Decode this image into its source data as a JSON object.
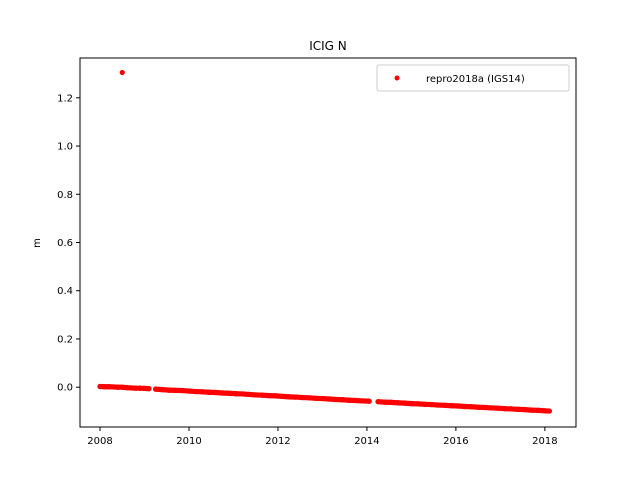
{
  "chart_data": {
    "type": "scatter",
    "title": "ICIG N",
    "xlabel": "",
    "ylabel": "m",
    "xlim": [
      2007.55,
      2018.7
    ],
    "ylim": [
      -0.165,
      1.365
    ],
    "xticks": [
      2008,
      2010,
      2012,
      2014,
      2016,
      2018
    ],
    "xtick_labels": [
      "2008",
      "2010",
      "2012",
      "2014",
      "2016",
      "2018"
    ],
    "yticks": [
      0.0,
      0.2,
      0.4,
      0.6,
      0.8,
      1.0,
      1.2
    ],
    "ytick_labels": [
      "0.0",
      "0.2",
      "0.4",
      "0.6",
      "0.8",
      "1.0",
      "1.2"
    ],
    "grid": false,
    "legend_position": "top-right",
    "series": [
      {
        "name": "repro2018a (IGS14)",
        "color": "#ff0000",
        "marker": "circle",
        "outliers": [
          {
            "x": 2008.5,
            "y": 1.305
          }
        ],
        "points": [
          {
            "x": 2008.0,
            "y": 0.003
          },
          {
            "x": 2008.1,
            "y": 0.002
          },
          {
            "x": 2008.2,
            "y": 0.002
          },
          {
            "x": 2008.3,
            "y": 0.001
          },
          {
            "x": 2008.4,
            "y": 0.0
          },
          {
            "x": 2008.5,
            "y": 0.0
          },
          {
            "x": 2008.6,
            "y": -0.002
          },
          {
            "x": 2008.7,
            "y": -0.003
          },
          {
            "x": 2008.8,
            "y": -0.004
          },
          {
            "x": 2008.9,
            "y": -0.004
          },
          {
            "x": 2009.0,
            "y": -0.005
          },
          {
            "x": 2009.1,
            "y": -0.006
          },
          {
            "x": 2009.25,
            "y": -0.008
          },
          {
            "x": 2009.4,
            "y": -0.01
          },
          {
            "x": 2009.55,
            "y": -0.012
          },
          {
            "x": 2009.7,
            "y": -0.013
          },
          {
            "x": 2009.85,
            "y": -0.014
          },
          {
            "x": 2010.0,
            "y": -0.016
          },
          {
            "x": 2010.15,
            "y": -0.018
          },
          {
            "x": 2010.3,
            "y": -0.019
          },
          {
            "x": 2010.45,
            "y": -0.021
          },
          {
            "x": 2010.6,
            "y": -0.022
          },
          {
            "x": 2010.75,
            "y": -0.024
          },
          {
            "x": 2010.9,
            "y": -0.025
          },
          {
            "x": 2011.05,
            "y": -0.027
          },
          {
            "x": 2011.2,
            "y": -0.028
          },
          {
            "x": 2011.35,
            "y": -0.03
          },
          {
            "x": 2011.5,
            "y": -0.032
          },
          {
            "x": 2011.65,
            "y": -0.033
          },
          {
            "x": 2011.8,
            "y": -0.035
          },
          {
            "x": 2011.95,
            "y": -0.036
          },
          {
            "x": 2012.1,
            "y": -0.038
          },
          {
            "x": 2012.25,
            "y": -0.04
          },
          {
            "x": 2012.4,
            "y": -0.041
          },
          {
            "x": 2012.55,
            "y": -0.043
          },
          {
            "x": 2012.7,
            "y": -0.044
          },
          {
            "x": 2012.85,
            "y": -0.046
          },
          {
            "x": 2013.0,
            "y": -0.047
          },
          {
            "x": 2013.15,
            "y": -0.049
          },
          {
            "x": 2013.3,
            "y": -0.051
          },
          {
            "x": 2013.45,
            "y": -0.052
          },
          {
            "x": 2013.6,
            "y": -0.054
          },
          {
            "x": 2013.75,
            "y": -0.055
          },
          {
            "x": 2013.9,
            "y": -0.057
          },
          {
            "x": 2014.05,
            "y": -0.058
          },
          {
            "x": 2014.25,
            "y": -0.06
          },
          {
            "x": 2014.4,
            "y": -0.062
          },
          {
            "x": 2014.55,
            "y": -0.063
          },
          {
            "x": 2014.7,
            "y": -0.065
          },
          {
            "x": 2014.85,
            "y": -0.066
          },
          {
            "x": 2015.0,
            "y": -0.068
          },
          {
            "x": 2015.15,
            "y": -0.069
          },
          {
            "x": 2015.3,
            "y": -0.071
          },
          {
            "x": 2015.45,
            "y": -0.072
          },
          {
            "x": 2015.6,
            "y": -0.074
          },
          {
            "x": 2015.75,
            "y": -0.075
          },
          {
            "x": 2015.9,
            "y": -0.077
          },
          {
            "x": 2016.05,
            "y": -0.078
          },
          {
            "x": 2016.2,
            "y": -0.08
          },
          {
            "x": 2016.35,
            "y": -0.081
          },
          {
            "x": 2016.5,
            "y": -0.083
          },
          {
            "x": 2016.65,
            "y": -0.084
          },
          {
            "x": 2016.8,
            "y": -0.086
          },
          {
            "x": 2016.95,
            "y": -0.087
          },
          {
            "x": 2017.1,
            "y": -0.089
          },
          {
            "x": 2017.25,
            "y": -0.09
          },
          {
            "x": 2017.4,
            "y": -0.092
          },
          {
            "x": 2017.55,
            "y": -0.093
          },
          {
            "x": 2017.7,
            "y": -0.095
          },
          {
            "x": 2017.85,
            "y": -0.096
          },
          {
            "x": 2018.0,
            "y": -0.098
          },
          {
            "x": 2018.1,
            "y": -0.099
          }
        ]
      }
    ]
  }
}
